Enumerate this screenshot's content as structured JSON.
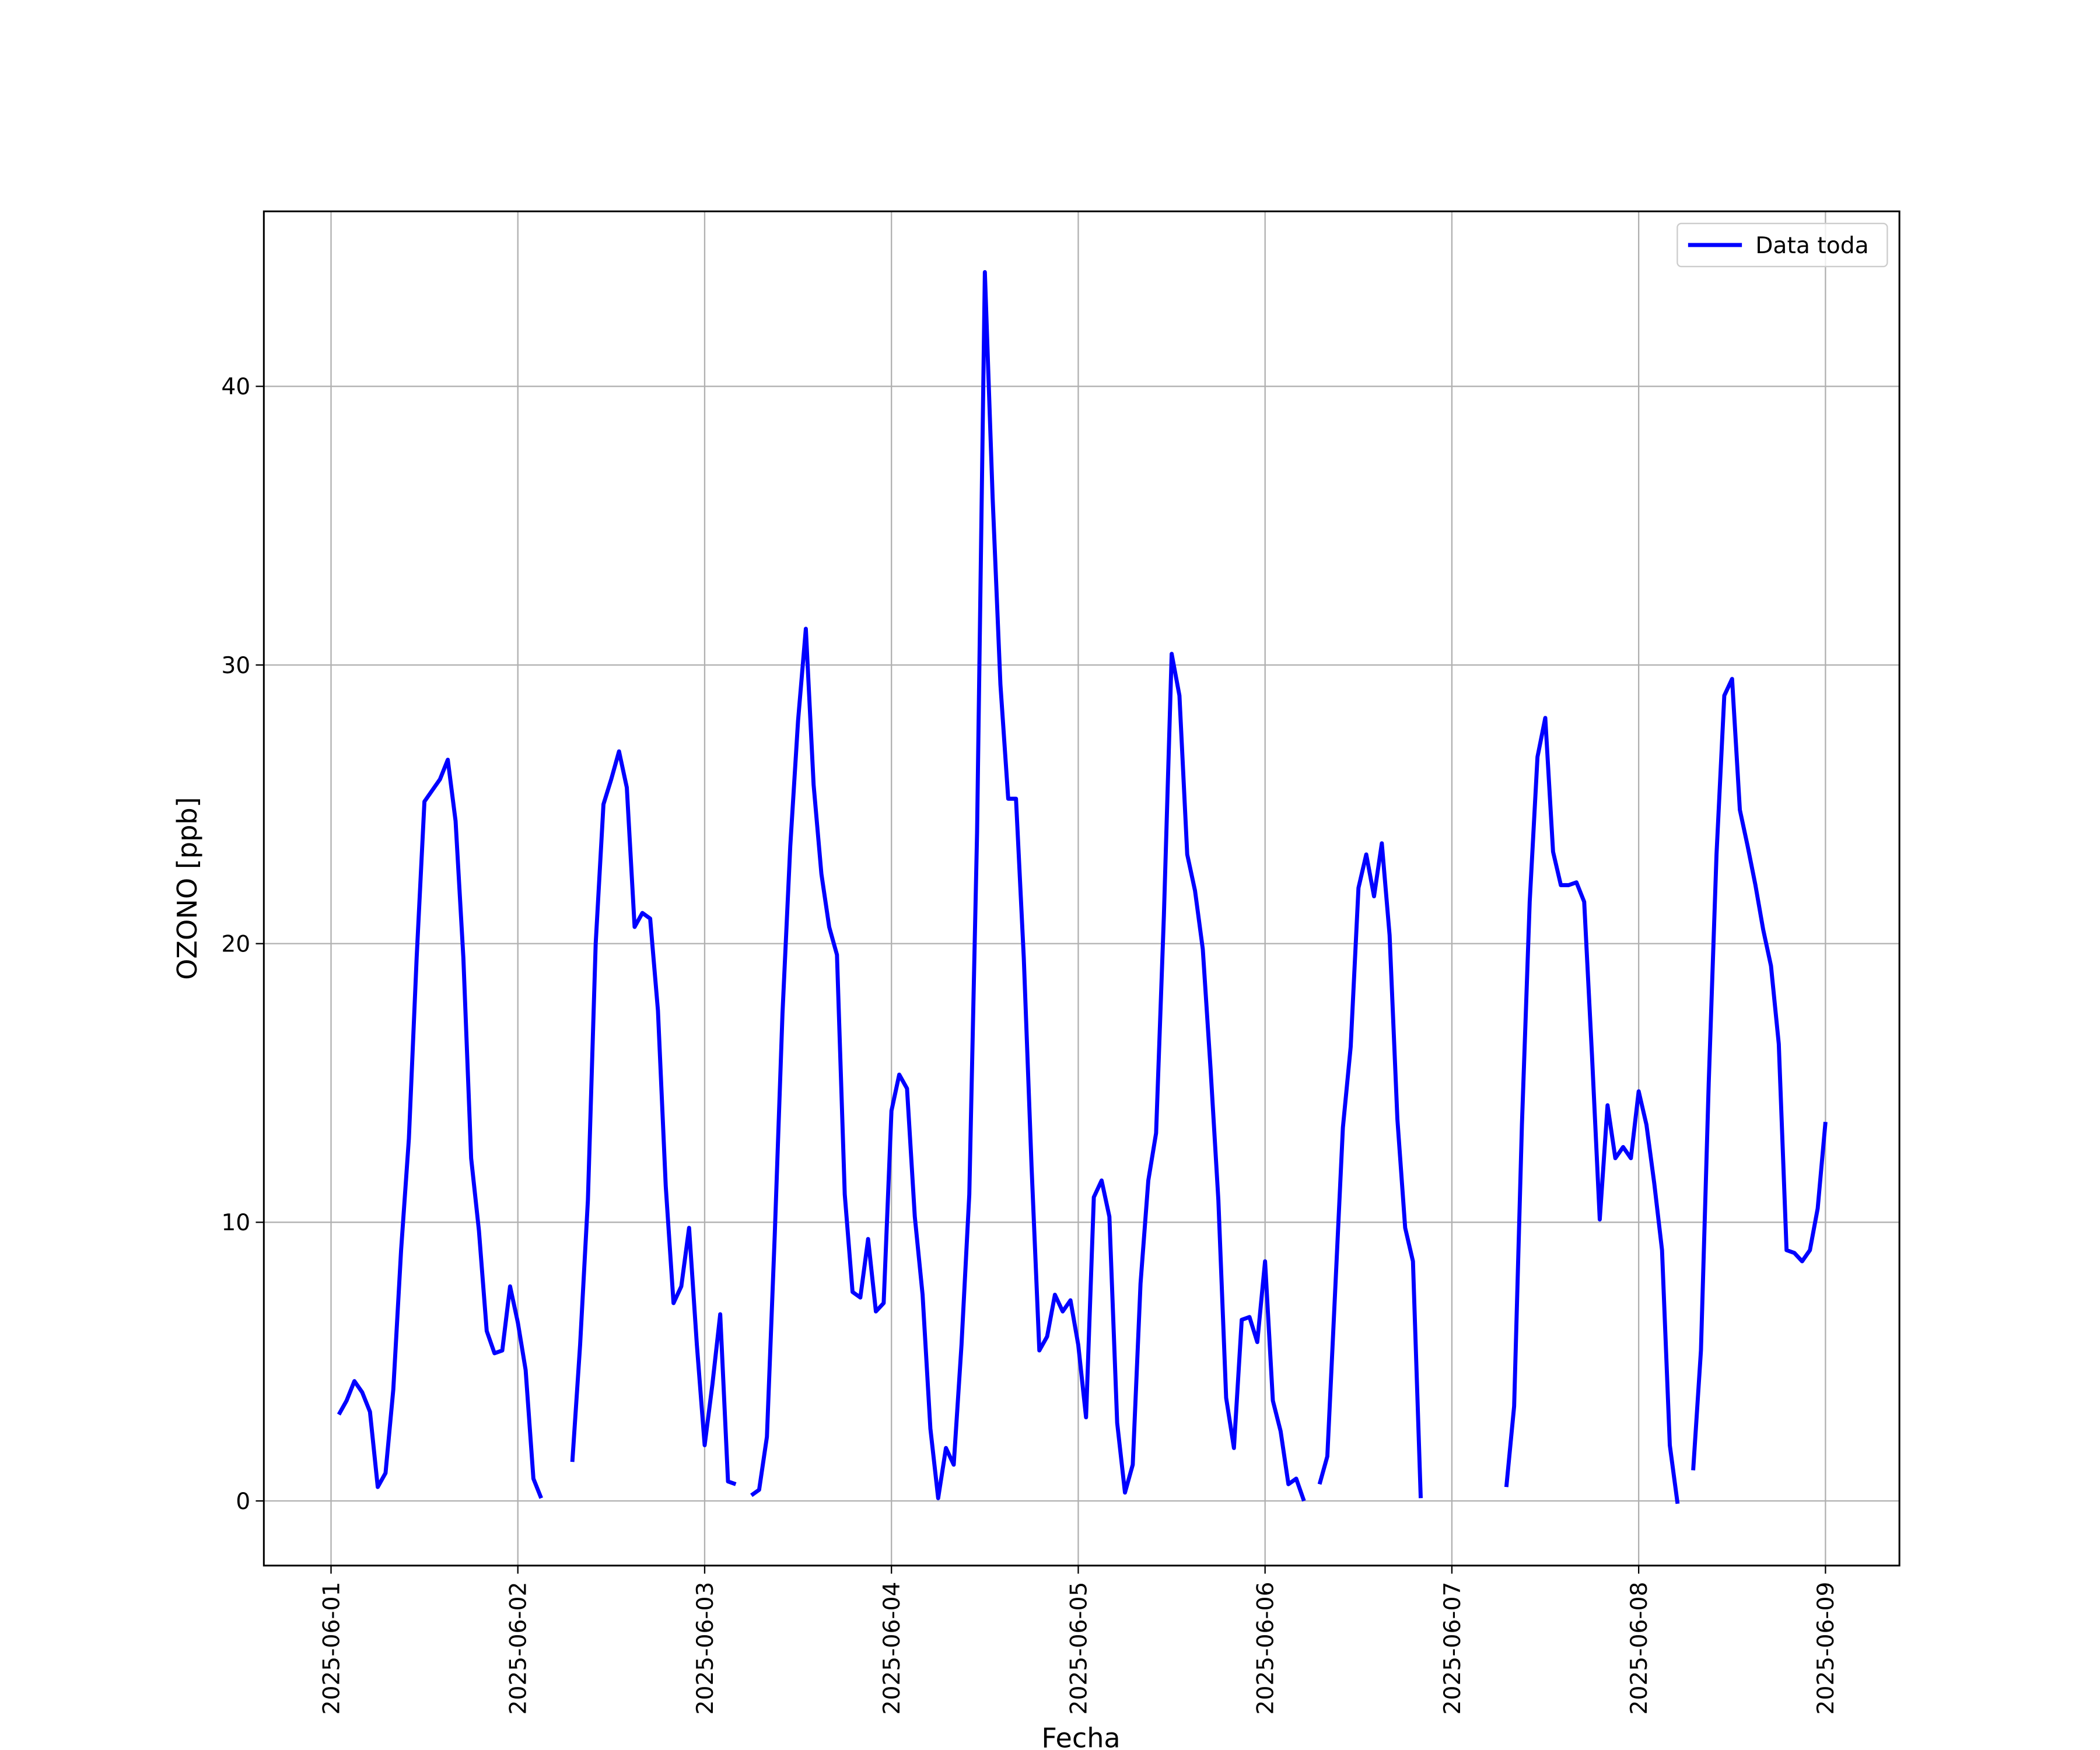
{
  "chart_data": {
    "type": "line",
    "x_label": "Fecha",
    "y_label": "OZONO [ppb]",
    "x": [
      "2025-06-01 01:00",
      "2025-06-01 02:00",
      "2025-06-01 03:00",
      "2025-06-01 04:00",
      "2025-06-01 05:00",
      "2025-06-01 06:00",
      "2025-06-01 07:00",
      "2025-06-01 08:00",
      "2025-06-01 09:00",
      "2025-06-01 10:00",
      "2025-06-01 11:00",
      "2025-06-01 12:00",
      "2025-06-01 13:00",
      "2025-06-01 14:00",
      "2025-06-01 15:00",
      "2025-06-01 16:00",
      "2025-06-01 17:00",
      "2025-06-01 18:00",
      "2025-06-01 19:00",
      "2025-06-01 20:00",
      "2025-06-01 21:00",
      "2025-06-01 22:00",
      "2025-06-01 23:00",
      "2025-06-02 00:00",
      "2025-06-02 01:00",
      "2025-06-02 02:00",
      "2025-06-02 03:00",
      "2025-06-02 05:00",
      "2025-06-02 07:00",
      "2025-06-02 08:00",
      "2025-06-02 09:00",
      "2025-06-02 10:00",
      "2025-06-02 11:00",
      "2025-06-02 12:00",
      "2025-06-02 13:00",
      "2025-06-02 14:00",
      "2025-06-02 15:00",
      "2025-06-02 16:00",
      "2025-06-02 17:00",
      "2025-06-02 18:00",
      "2025-06-02 19:00",
      "2025-06-02 20:00",
      "2025-06-02 21:00",
      "2025-06-02 22:00",
      "2025-06-02 23:00",
      "2025-06-03 00:00",
      "2025-06-03 01:00",
      "2025-06-03 02:00",
      "2025-06-03 03:00",
      "2025-06-03 04:00",
      "2025-06-03 05:00",
      "2025-06-03 06:00",
      "2025-06-03 07:00",
      "2025-06-03 08:00",
      "2025-06-03 09:00",
      "2025-06-03 10:00",
      "2025-06-03 11:00",
      "2025-06-03 12:00",
      "2025-06-03 13:00",
      "2025-06-03 14:00",
      "2025-06-03 15:00",
      "2025-06-03 16:00",
      "2025-06-03 17:00",
      "2025-06-03 18:00",
      "2025-06-03 19:00",
      "2025-06-03 20:00",
      "2025-06-03 21:00",
      "2025-06-03 22:00",
      "2025-06-03 23:00",
      "2025-06-04 00:00",
      "2025-06-04 01:00",
      "2025-06-04 02:00",
      "2025-06-04 03:00",
      "2025-06-04 04:00",
      "2025-06-04 05:00",
      "2025-06-04 06:00",
      "2025-06-04 07:00",
      "2025-06-04 08:00",
      "2025-06-04 09:00",
      "2025-06-04 10:00",
      "2025-06-04 11:00",
      "2025-06-04 12:00",
      "2025-06-04 13:00",
      "2025-06-04 14:00",
      "2025-06-04 15:00",
      "2025-06-04 16:00",
      "2025-06-04 17:00",
      "2025-06-04 18:00",
      "2025-06-04 19:00",
      "2025-06-04 20:00",
      "2025-06-04 21:00",
      "2025-06-04 22:00",
      "2025-06-04 23:00",
      "2025-06-05 00:00",
      "2025-06-05 01:00",
      "2025-06-05 02:00",
      "2025-06-05 03:00",
      "2025-06-05 04:00",
      "2025-06-05 05:00",
      "2025-06-05 06:00",
      "2025-06-05 07:00",
      "2025-06-05 08:00",
      "2025-06-05 09:00",
      "2025-06-05 10:00",
      "2025-06-05 11:00",
      "2025-06-05 12:00",
      "2025-06-05 13:00",
      "2025-06-05 14:00",
      "2025-06-05 15:00",
      "2025-06-05 16:00",
      "2025-06-05 17:00",
      "2025-06-05 18:00",
      "2025-06-05 19:00",
      "2025-06-05 20:00",
      "2025-06-05 21:00",
      "2025-06-05 22:00",
      "2025-06-05 23:00",
      "2025-06-06 00:00",
      "2025-06-06 01:00",
      "2025-06-06 02:00",
      "2025-06-06 03:00",
      "2025-06-06 04:00",
      "2025-06-06 05:00",
      "2025-06-06 06:00",
      "2025-06-06 07:00",
      "2025-06-06 08:00",
      "2025-06-06 09:00",
      "2025-06-06 10:00",
      "2025-06-06 11:00",
      "2025-06-06 12:00",
      "2025-06-06 13:00",
      "2025-06-06 14:00",
      "2025-06-06 15:00",
      "2025-06-06 16:00",
      "2025-06-06 17:00",
      "2025-06-06 18:00",
      "2025-06-06 19:00",
      "2025-06-06 20:00",
      "2025-06-07 00:00",
      "2025-06-07 07:00",
      "2025-06-07 08:00",
      "2025-06-07 09:00",
      "2025-06-07 10:00",
      "2025-06-07 11:00",
      "2025-06-07 12:00",
      "2025-06-07 13:00",
      "2025-06-07 14:00",
      "2025-06-07 15:00",
      "2025-06-07 16:00",
      "2025-06-07 17:00",
      "2025-06-07 18:00",
      "2025-06-07 19:00",
      "2025-06-07 20:00",
      "2025-06-07 21:00",
      "2025-06-07 22:00",
      "2025-06-07 23:00",
      "2025-06-08 00:00",
      "2025-06-08 01:00",
      "2025-06-08 02:00",
      "2025-06-08 03:00",
      "2025-06-08 04:00",
      "2025-06-08 05:00",
      "2025-06-08 06:00",
      "2025-06-08 07:00",
      "2025-06-08 08:00",
      "2025-06-08 09:00",
      "2025-06-08 10:00",
      "2025-06-08 11:00",
      "2025-06-08 12:00",
      "2025-06-08 13:00",
      "2025-06-08 14:00",
      "2025-06-08 15:00",
      "2025-06-08 16:00",
      "2025-06-08 17:00",
      "2025-06-08 18:00",
      "2025-06-08 19:00",
      "2025-06-08 20:00",
      "2025-06-08 21:00",
      "2025-06-08 22:00",
      "2025-06-08 23:00",
      "2025-06-09 00:00"
    ],
    "series": [
      {
        "name": "Data toda",
        "color": "#0000ff",
        "values": [
          3.1,
          3.6,
          4.3,
          3.9,
          3.2,
          0.5,
          1.0,
          4.0,
          9.0,
          13.0,
          19.5,
          25.1,
          25.5,
          25.9,
          26.6,
          24.4,
          19.5,
          12.3,
          9.7,
          6.1,
          5.3,
          5.4,
          7.7,
          6.4,
          4.7,
          0.8,
          0.1,
          null,
          1.4,
          5.6,
          10.8,
          20.0,
          25.0,
          25.9,
          26.9,
          25.6,
          20.6,
          21.1,
          20.9,
          17.6,
          11.3,
          7.1,
          7.7,
          9.8,
          5.6,
          2.0,
          4.2,
          6.7,
          0.7,
          0.6,
          null,
          0.2,
          0.4,
          2.3,
          9.5,
          17.5,
          23.5,
          28.0,
          31.3,
          25.7,
          22.5,
          20.6,
          19.6,
          11.0,
          7.5,
          7.3,
          9.4,
          6.8,
          7.1,
          14.0,
          15.3,
          14.8,
          10.2,
          7.4,
          2.6,
          0.1,
          1.9,
          1.3,
          5.6,
          11.0,
          24.0,
          44.1,
          36.0,
          29.3,
          25.2,
          25.2,
          19.5,
          12.0,
          5.4,
          5.9,
          7.4,
          6.8,
          7.2,
          5.6,
          3.0,
          10.9,
          11.5,
          10.2,
          2.8,
          0.3,
          1.3,
          7.8,
          11.5,
          13.2,
          21.0,
          30.4,
          28.9,
          23.2,
          21.9,
          19.8,
          15.5,
          10.8,
          3.7,
          1.9,
          6.5,
          6.6,
          5.7,
          8.6,
          3.6,
          2.5,
          0.6,
          0.8,
          0.0,
          null,
          0.6,
          1.6,
          7.5,
          13.4,
          16.3,
          22.0,
          23.2,
          21.7,
          23.6,
          20.3,
          13.7,
          9.8,
          8.6,
          0.1,
          null,
          0.5,
          3.4,
          13.5,
          21.5,
          26.7,
          28.1,
          23.3,
          22.1,
          22.1,
          22.2,
          21.5,
          16.0,
          10.1,
          14.2,
          12.3,
          12.7,
          12.3,
          14.7,
          13.5,
          11.4,
          9.0,
          2.0,
          -0.1,
          null,
          1.1,
          5.4,
          15.0,
          23.2,
          28.9,
          29.5,
          24.8,
          23.5,
          22.1,
          20.5,
          19.2,
          16.4,
          9.0,
          8.9,
          8.6,
          9.0,
          10.5,
          13.6
        ]
      }
    ],
    "xlim": [
      "2025-05-31 15:22",
      "2025-06-09 09:30"
    ],
    "xticks": [
      "2025-06-01",
      "2025-06-02",
      "2025-06-03",
      "2025-06-04",
      "2025-06-05",
      "2025-06-06",
      "2025-06-07",
      "2025-06-08",
      "2025-06-09"
    ],
    "ylim": [
      -2.32,
      46.28
    ],
    "yticks": [
      0,
      10,
      20,
      30,
      40
    ],
    "grid": true,
    "legend": "upper right"
  }
}
